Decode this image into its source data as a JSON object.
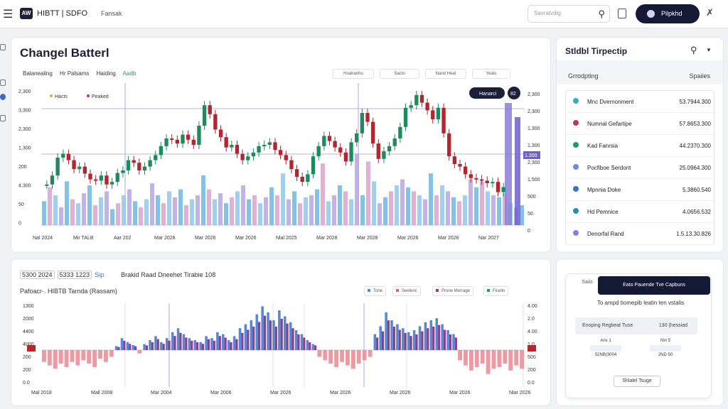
{
  "header": {
    "logo": "AW",
    "title": "HIBTT | SDFO",
    "subtitle": "Fansak",
    "search_placeholder": "Savratvdig",
    "publish_label": "Pilpkhd"
  },
  "main_chart": {
    "title": "Changel Batterl",
    "legend": [
      "Balanealing",
      "Hr Palsams",
      "Haiding",
      "Aadb"
    ],
    "filters": [
      "Hoahanhu",
      "Sacto",
      "Nand Heat",
      "Yeats"
    ],
    "top_legend": [
      "Hacts",
      "Peaked"
    ],
    "pill_label": "Hanarci",
    "pill_num": "82"
  },
  "chart_data": {
    "type": "line",
    "x_labels": [
      "Nal 2024",
      "Mir TALB",
      "Aar 202",
      "Mar 2026",
      "Mar 2026",
      "Mar 2026",
      "Nlal 2025",
      "Mar 2028",
      "Mar 2028",
      "Mar 2026",
      "Mar 2026",
      "Nar 2027"
    ],
    "y_labels_left": [
      "2,300",
      "3,300",
      "2,300",
      "1,300",
      "200",
      "4,300",
      "50",
      "0"
    ],
    "y_labels_right": [
      "2,300",
      "2,300",
      "1,300",
      "1,300",
      "2,300",
      "1,500",
      "500",
      "50",
      "0"
    ],
    "right_badge": "1.300",
    "price": [
      48,
      62,
      90,
      96,
      86,
      72,
      76,
      65,
      56,
      54,
      62,
      48,
      52,
      66,
      70,
      86,
      82,
      70,
      76,
      86,
      94,
      108,
      120,
      118,
      112,
      126,
      118,
      110,
      140,
      172,
      158,
      134,
      122,
      106,
      110,
      96,
      86,
      92,
      98,
      108,
      110,
      114,
      102,
      94,
      86,
      72,
      60,
      52,
      64,
      92,
      108,
      124,
      116,
      106,
      98,
      84,
      114,
      128,
      160,
      146,
      112,
      88,
      100,
      108,
      120,
      138,
      168,
      172,
      188,
      176,
      164,
      150,
      168,
      128,
      92,
      80,
      76,
      64,
      58,
      56,
      54,
      50,
      52,
      36,
      44
    ],
    "volume": [
      24,
      38,
      30,
      18,
      44,
      26,
      22,
      32,
      40,
      20,
      28,
      34,
      16,
      22,
      30,
      36,
      24,
      18,
      26,
      42,
      30,
      22,
      34,
      28,
      36,
      20,
      26,
      30,
      50,
      36,
      26,
      32,
      22,
      28,
      34,
      40,
      26,
      30,
      22,
      28,
      38,
      30,
      52,
      26,
      34,
      22,
      28,
      30,
      36,
      62,
      24,
      30,
      40,
      34,
      26,
      72,
      30,
      64,
      44,
      22,
      28,
      34,
      40,
      46,
      38,
      34,
      30,
      26,
      52,
      30,
      40,
      34,
      28,
      24,
      30,
      46,
      38,
      44,
      34,
      30,
      28,
      32,
      22,
      18,
      20
    ]
  },
  "side_panel": {
    "title": "Stldbl Tirpectip",
    "col_left": "Grrodpting",
    "col_right": "Spaiies",
    "rows": [
      {
        "name": "Mnc Dvernonment",
        "value": "53.7944.300",
        "color": "#3ea7c9"
      },
      {
        "name": "Numnal Gefartipe",
        "value": "57.8653.300",
        "color": "#c4364c"
      },
      {
        "name": "Kad Fanrsia",
        "value": "44.2370.300",
        "color": "#1f9a6d"
      },
      {
        "name": "Pocfiboe Serdont",
        "value": "25.0964.300",
        "color": "#6f8be0"
      },
      {
        "name": "Mpnnia Doke",
        "value": "5.3860.540",
        "color": "#3576c4"
      },
      {
        "name": "Hd Pemnice",
        "value": "4.0656.532",
        "color": "#2a8fa8"
      },
      {
        "name": "Denorfal Rand",
        "value": "1.5.13.30.826",
        "color": "#8c7fd6"
      }
    ]
  },
  "lower_chart": {
    "chips": [
      "5300 2024",
      "5333 1223"
    ],
    "chip_extra": "Sip",
    "header_text": "Brakid Raad Dneehet Tirabie 108",
    "title": "Pafoacr-. HIBTB Tarnda (Rassam)",
    "legend": [
      {
        "label": "Tone",
        "color": "#4d8fd9"
      },
      {
        "label": "Seelenc",
        "color": "#e06070"
      },
      {
        "label": "Prone Merrage",
        "color": "#8a3f8a"
      },
      {
        "label": "Ficelin",
        "color": "#1f9a6d"
      }
    ],
    "x_labels": [
      "Mal 2018",
      "Mall 2008",
      "Mar 2004",
      "Mar 2006",
      "Mar 2026",
      "Mar 2026",
      "Mar 2026",
      "Mar 2026",
      "Nlar 2026"
    ],
    "y_labels_left": [
      "1300",
      "2000",
      "4400",
      "4000",
      "200",
      "200",
      "0.0"
    ],
    "y_labels_right": [
      "4.00",
      "2.0",
      "4.00",
      "1.0",
      "500",
      "200",
      "0.0"
    ],
    "bars": [
      -14,
      -18,
      -22,
      -16,
      -20,
      -14,
      -18,
      -12,
      -16,
      -20,
      -10,
      -14,
      -8,
      4,
      12,
      8,
      5,
      -4,
      6,
      10,
      14,
      8,
      12,
      18,
      22,
      16,
      12,
      10,
      8,
      14,
      12,
      18,
      16,
      10,
      14,
      22,
      26,
      30,
      36,
      44,
      38,
      30,
      40,
      34,
      28,
      20,
      16,
      10,
      6,
      -8,
      -12,
      -16,
      -20,
      -14,
      -18,
      -22,
      -16,
      -12,
      -8,
      16,
      24,
      38,
      30,
      26,
      22,
      18,
      20,
      24,
      28,
      30,
      32,
      26,
      20,
      16,
      -12,
      -18,
      -24,
      -20,
      -16,
      -28,
      -22,
      -20,
      -16,
      -24,
      -18,
      -22
    ]
  },
  "mini_panel": {
    "tab": "Sails",
    "banner": "Eato Pauende Tve Capbuns",
    "desc": "To ampd tiomepib leatin ten vstalis",
    "input_label": "Enoping Regbeat Tuse",
    "input_value": "130 (hessiad",
    "stat_a_top": "Ans 1",
    "stat_a_bottom": "52NB(3004",
    "stat_b_top": "Nin 5",
    "stat_b_bottom": "2ND 50",
    "button": "Shlalel Tsuge"
  }
}
